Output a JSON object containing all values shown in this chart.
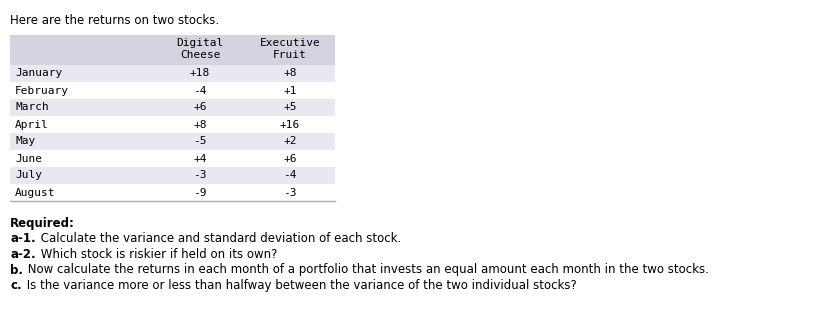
{
  "intro_text": "Here are the returns on two stocks.",
  "header_row1": [
    "",
    "Digital",
    "Executive"
  ],
  "header_row2": [
    "",
    "Cheese",
    "Fruit"
  ],
  "months": [
    "January",
    "February",
    "March",
    "April",
    "May",
    "June",
    "July",
    "August"
  ],
  "digital_cheese": [
    "+18",
    "-4",
    "+6",
    "+8",
    "-5",
    "+4",
    "-3",
    "-9"
  ],
  "executive_fruit": [
    "+8",
    "+1",
    "+5",
    "+16",
    "+2",
    "+6",
    "-4",
    "-3"
  ],
  "header_bg": "#d4d4e0",
  "row_bg_even": "#e8e8f0",
  "row_bg_odd": "#ffffff",
  "table_border": "#aaaaaa",
  "text_color": "#000000",
  "required_text": "Required:",
  "a1_bold": "a-1.",
  "a1_rest": " Calculate the variance and standard deviation of each stock.",
  "a2_bold": "a-2.",
  "a2_rest": " Which stock is riskier if held on its own?",
  "b_bold": "b.",
  "b_rest": " Now calculate the returns in each month of a portfolio that invests an equal amount each month in the two stocks.",
  "c_bold": "c.",
  "c_rest": " Is the variance more or less than halfway between the variance of the two individual stocks?",
  "font_size_table": 8.0,
  "font_size_text": 8.5
}
